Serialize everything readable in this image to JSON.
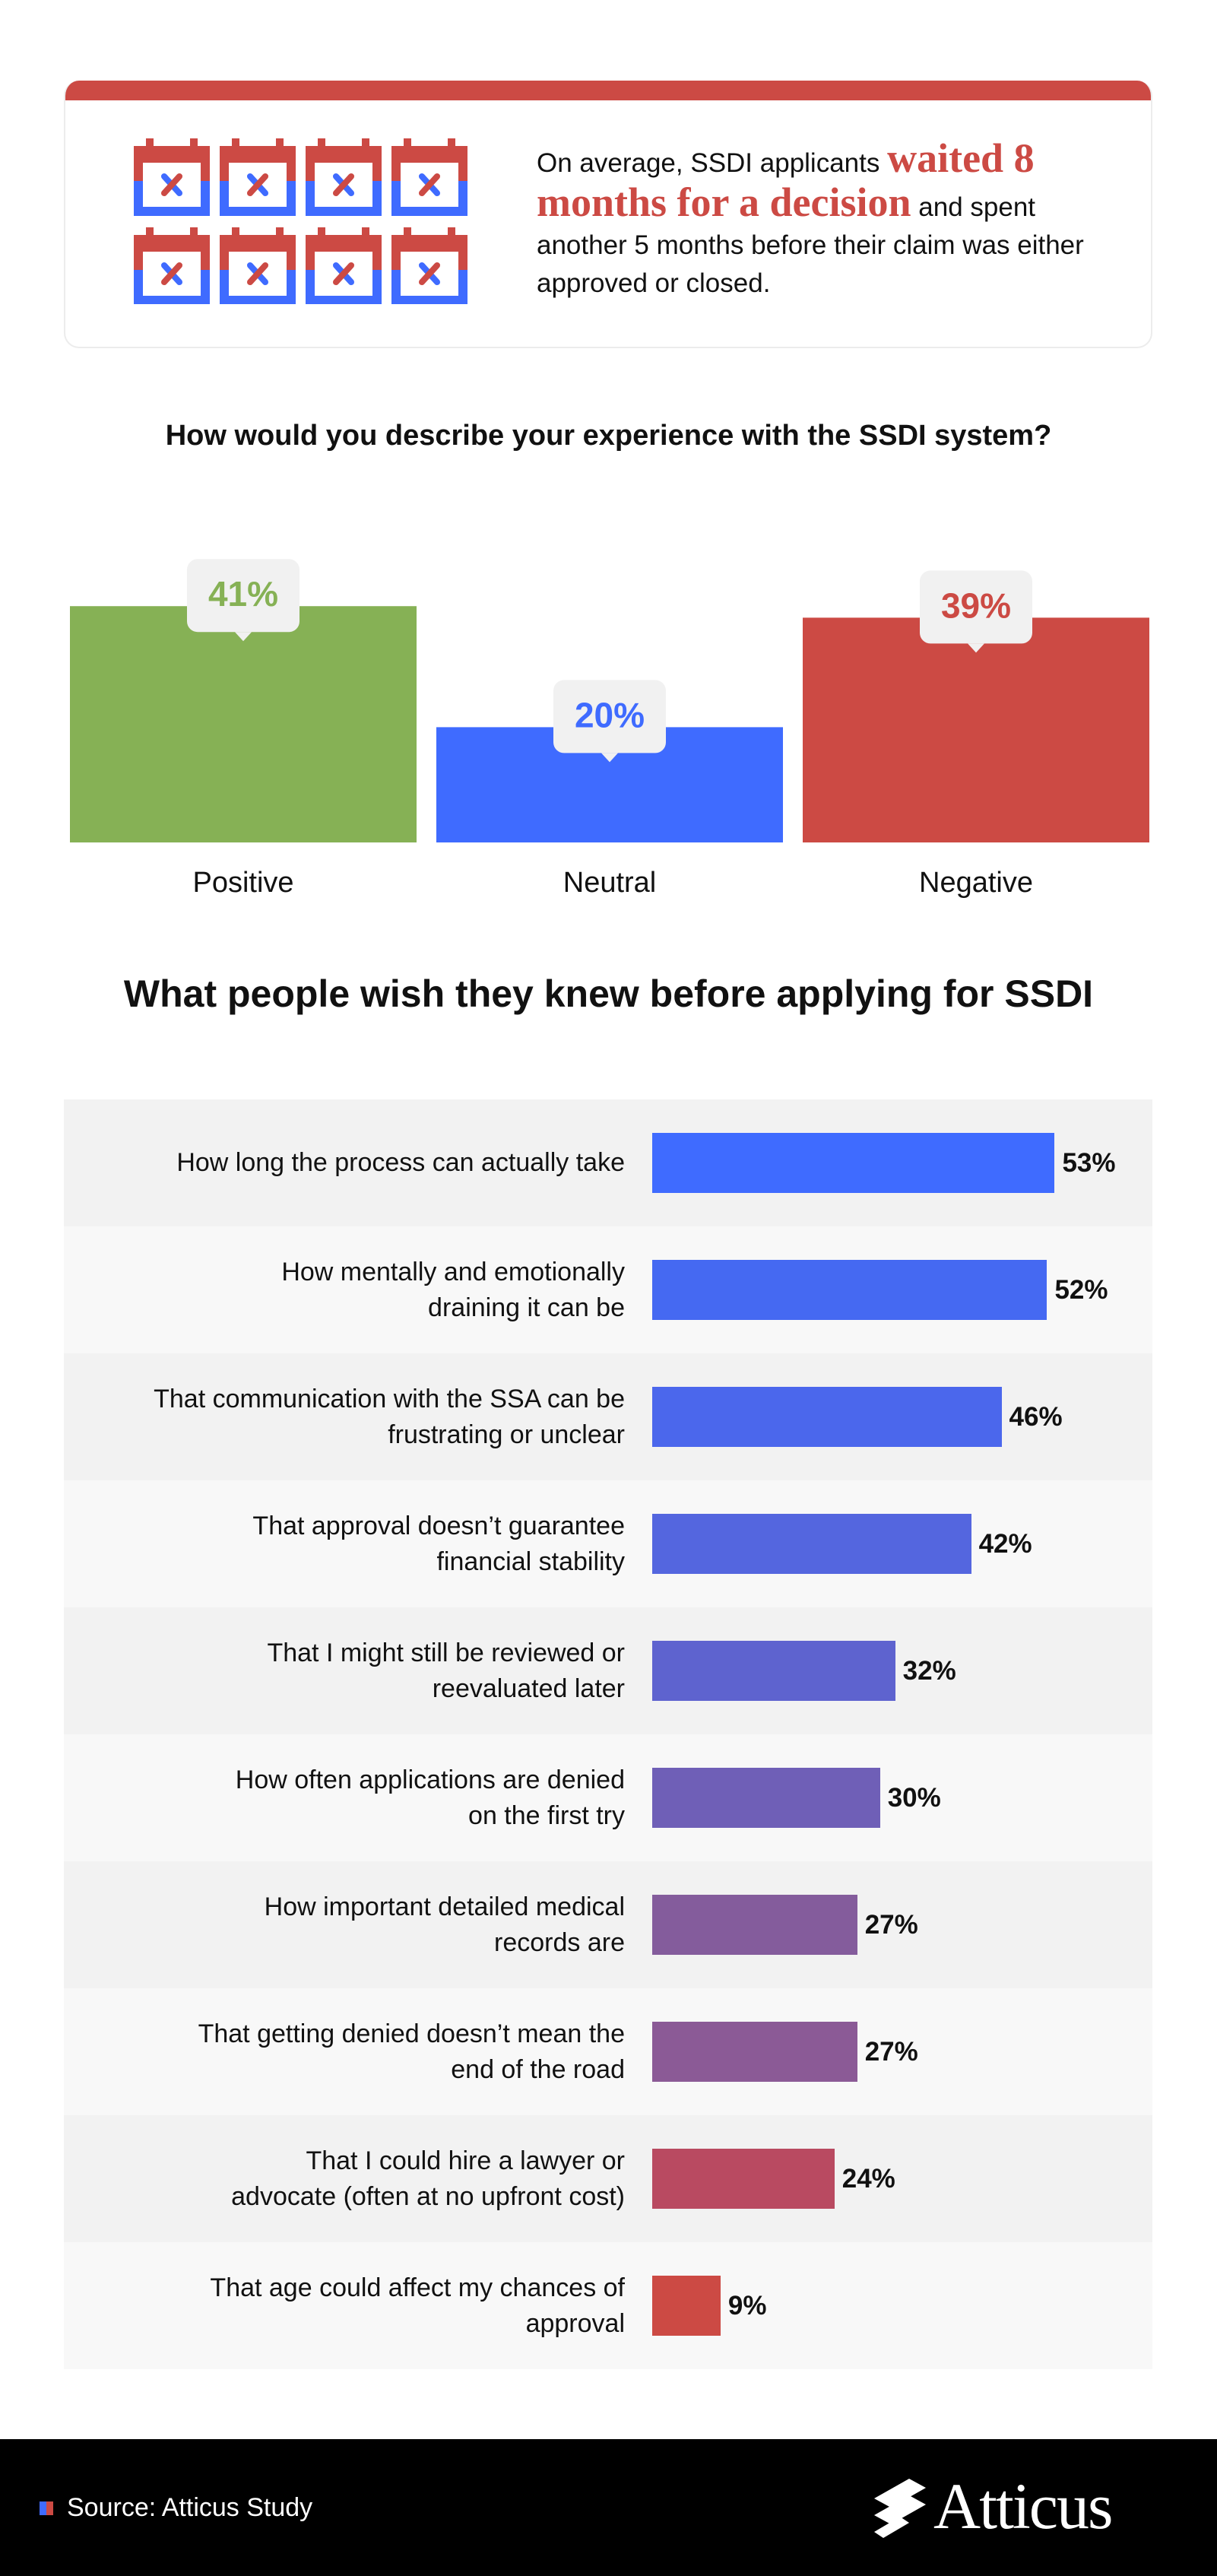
{
  "colors": {
    "red": "#cc4a44",
    "blue": "#3f6bff",
    "green": "#86b155",
    "calendar_red": "#cc4a44",
    "calendar_blue": "#3f6bff"
  },
  "intro": {
    "text_before": "On average, SSDI applicants ",
    "highlight": "waited 8 months for a decision",
    "text_after": " and spent another 5 months before their claim was either approved or closed.",
    "calendar_count": 8,
    "calendar_icon": "calendar-x-icon"
  },
  "experience": {
    "question": "How would you describe your experience with the SSDI system?",
    "chart_data": {
      "type": "bar",
      "title": "How would you describe your experience with the SSDI system?",
      "categories": [
        "Positive",
        "Neutral",
        "Negative"
      ],
      "values": [
        41,
        20,
        39
      ],
      "value_labels": [
        "41%",
        "20%",
        "39%"
      ],
      "unit": "%",
      "colors": [
        "#86b155",
        "#3f6bff",
        "#cc4a44"
      ],
      "ylim": [
        0,
        45
      ],
      "grid": false,
      "legend": "none"
    }
  },
  "wishes": {
    "title": "What people wish they knew before applying for SSDI",
    "chart_data": {
      "type": "bar",
      "orientation": "horizontal",
      "title": "What people wish they knew before applying for SSDI",
      "categories": [
        "How long the process can actually take",
        "How mentally and emotionally draining it can be",
        "That communication with the SSA can be frustrating or unclear",
        "That approval doesn’t guarantee financial stability",
        "That I might still be reviewed or reevaluated later",
        "How often applications are denied on the first try",
        "How important detailed medical records are",
        "That getting denied doesn’t mean the end of the road",
        "That I could hire a lawyer or advocate (often at no upfront cost)",
        "That age could affect my chances of approval"
      ],
      "display_labels": [
        "How long the process can actually take",
        "How mentally and emotionally\ndraining it can be",
        "That communication with the SSA can be\nfrustrating or unclear",
        "That approval doesn’t guarantee\nfinancial stability",
        "That I might still be reviewed or\nreevaluated later",
        "How often applications are denied\non the first try",
        "How important detailed medical\nrecords are",
        "That getting denied doesn’t mean the\nend of the road",
        "That I could hire a lawyer or\nadvocate (often at no upfront cost)",
        "That age could affect my chances of\napproval"
      ],
      "values": [
        53,
        52,
        46,
        42,
        32,
        30,
        27,
        27,
        24,
        9
      ],
      "value_labels": [
        "53%",
        "52%",
        "46%",
        "42%",
        "32%",
        "30%",
        "27%",
        "27%",
        "24%",
        "9%"
      ],
      "unit": "%",
      "colors": [
        "#3f6bff",
        "#4569f2",
        "#4b67ec",
        "#5466df",
        "#5e63cf",
        "#6f5fb7",
        "#845c9c",
        "#8b5a96",
        "#b94a61",
        "#cc4a44"
      ],
      "xlim": [
        0,
        55
      ],
      "grid": false,
      "legend": "none"
    }
  },
  "footer": {
    "source": "Source: Atticus Study",
    "brand": "Atticus",
    "brand_icon": "atticus-logo-icon",
    "source_icon": "source-square-icon"
  }
}
